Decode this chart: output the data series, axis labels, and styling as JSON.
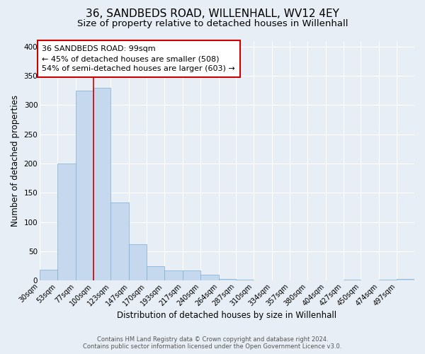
{
  "title": "36, SANDBEDS ROAD, WILLENHALL, WV12 4EY",
  "subtitle": "Size of property relative to detached houses in Willenhall",
  "xlabel": "Distribution of detached houses by size in Willenhall",
  "ylabel": "Number of detached properties",
  "bins": [
    30,
    53,
    77,
    100,
    123,
    147,
    170,
    193,
    217,
    240,
    264,
    287,
    310,
    334,
    357,
    380,
    404,
    427,
    450,
    474,
    497
  ],
  "bar_heights": [
    19,
    200,
    325,
    330,
    133,
    62,
    25,
    17,
    17,
    10,
    3,
    1,
    0,
    0,
    0,
    0,
    0,
    1,
    0,
    1,
    3
  ],
  "bar_color": "#c5d8ee",
  "bar_edge_color": "#7aadd4",
  "vline_x": 100,
  "vline_color": "#cc0000",
  "annotation_text": "36 SANDBEDS ROAD: 99sqm\n← 45% of detached houses are smaller (508)\n54% of semi-detached houses are larger (603) →",
  "annotation_box_facecolor": "#ffffff",
  "annotation_box_edgecolor": "#cc0000",
  "ylim": [
    0,
    410
  ],
  "yticks": [
    0,
    50,
    100,
    150,
    200,
    250,
    300,
    350,
    400
  ],
  "bg_color": "#e8eef5",
  "grid_color": "#c8d4e0",
  "footer_text": "Contains HM Land Registry data © Crown copyright and database right 2024.\nContains public sector information licensed under the Open Government Licence v3.0.",
  "title_fontsize": 11,
  "subtitle_fontsize": 9.5,
  "tick_fontsize": 7,
  "ylabel_fontsize": 8.5,
  "xlabel_fontsize": 8.5,
  "annotation_fontsize": 8,
  "footer_fontsize": 6
}
